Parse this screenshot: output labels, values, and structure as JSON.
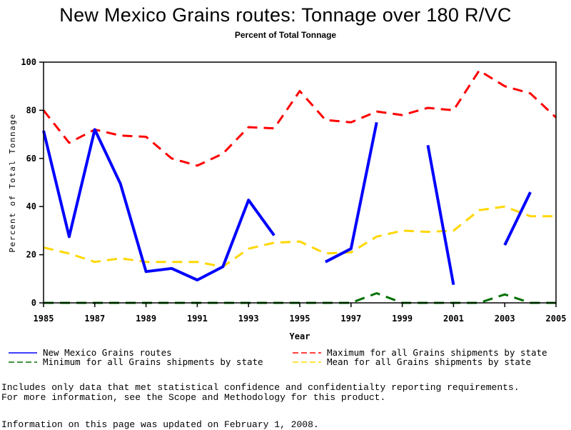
{
  "chart_data": {
    "type": "line",
    "title": "New Mexico Grains routes: Tonnage over 180 R/VC",
    "subtitle": "Percent of Total Tonnage",
    "xlabel": "Year",
    "ylabel": "Percent of Total Tonnage",
    "xlim": [
      1985,
      2005
    ],
    "ylim": [
      0,
      100
    ],
    "x_ticks": [
      "1985",
      "1987",
      "1989",
      "1991",
      "1993",
      "1995",
      "1997",
      "1999",
      "2001",
      "2003",
      "2005"
    ],
    "y_ticks": [
      "0",
      "20",
      "40",
      "60",
      "80",
      "100"
    ],
    "grid": false,
    "legend_position": "bottom",
    "x": [
      1985,
      1986,
      1987,
      1988,
      1989,
      1990,
      1991,
      1992,
      1993,
      1994,
      1995,
      1996,
      1997,
      1998,
      1999,
      2000,
      2001,
      2002,
      2003,
      2004,
      2005
    ],
    "series": [
      {
        "name": "New Mexico Grains routes",
        "color": "#0000ff",
        "style": "solid",
        "values": [
          71.5,
          27.5,
          72,
          49.5,
          13,
          14.3,
          9.5,
          15,
          42.7,
          28,
          null,
          17,
          22.5,
          75,
          null,
          65.5,
          7.5,
          null,
          24,
          46,
          null
        ]
      },
      {
        "name": "Maximum for all Grains shipments by state",
        "color": "#ff0000",
        "style": "dashed",
        "values": [
          80,
          66.5,
          72,
          69.5,
          69,
          60,
          57,
          62,
          73,
          72.5,
          88,
          76,
          75,
          79.5,
          78,
          81,
          80,
          96.5,
          90,
          87,
          77
        ]
      },
      {
        "name": "Minimum for all Grains shipments by state",
        "color": "#007000",
        "style": "dashed",
        "values": [
          0,
          0,
          0,
          0,
          0,
          0,
          0,
          0,
          0,
          0,
          0,
          0,
          0,
          4,
          0,
          0,
          0,
          0,
          3.5,
          0,
          0
        ]
      },
      {
        "name": "Mean for all Grains shipments by state",
        "color": "#ffd700",
        "style": "dashed",
        "values": [
          23,
          20.5,
          17,
          18.5,
          17,
          17,
          17,
          15,
          22.5,
          25,
          25.5,
          20.5,
          21,
          27.5,
          30,
          29.5,
          30,
          38.5,
          40,
          36,
          36
        ]
      }
    ]
  },
  "footer": {
    "note_line1": "Includes only data that met statistical confidence and confidentialty reporting requirements.",
    "note_line2": "For more information, see the Scope and Methodology for this product.",
    "updated": "Information on this page was updated on February 1, 2008."
  }
}
